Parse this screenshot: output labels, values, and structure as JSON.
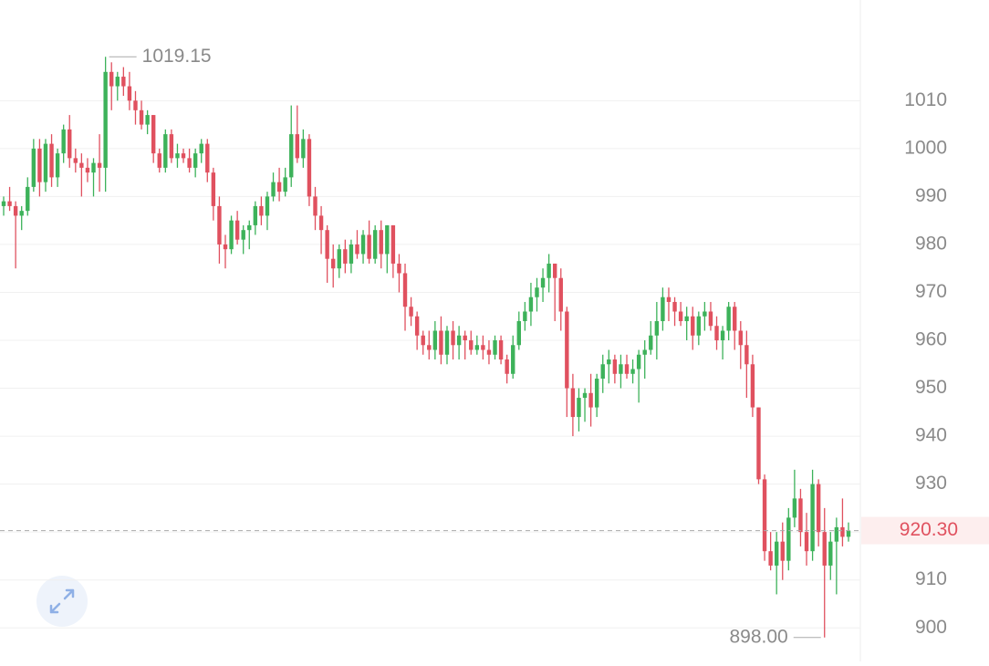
{
  "chart_data": {
    "type": "candlestick",
    "ylim": [
      893,
      1031
    ],
    "yticks": [
      900,
      910,
      920,
      930,
      940,
      950,
      960,
      970,
      980,
      990,
      1000,
      1010
    ],
    "grid": true,
    "up_color": "#3db25a",
    "down_color": "#e0515f",
    "max_label": 1019.15,
    "min_label": {
      "value": 898,
      "label": "898.00"
    },
    "last_price": {
      "value": 920.3,
      "label": "920.30"
    },
    "candles": [
      [
        988,
        990,
        986,
        989
      ],
      [
        989,
        992,
        987,
        988
      ],
      [
        988,
        989,
        975,
        986
      ],
      [
        986,
        988,
        983,
        987
      ],
      [
        987,
        994,
        986,
        992
      ],
      [
        992,
        1002,
        991,
        1000
      ],
      [
        1000,
        1002,
        990,
        993
      ],
      [
        993,
        1002,
        991,
        1001
      ],
      [
        1001,
        1003,
        992,
        994
      ],
      [
        994,
        1000,
        992,
        999
      ],
      [
        999,
        1005,
        997,
        1004
      ],
      [
        1004,
        1007,
        996,
        998
      ],
      [
        998,
        1000,
        995,
        997
      ],
      [
        997,
        999,
        990,
        996
      ],
      [
        996,
        998,
        993,
        995
      ],
      [
        995,
        998,
        990,
        997
      ],
      [
        997,
        1003,
        991,
        996
      ],
      [
        996,
        1019.15,
        991,
        1016
      ],
      [
        1016,
        1018,
        1008,
        1013
      ],
      [
        1013,
        1016,
        1010,
        1015
      ],
      [
        1015,
        1017,
        1011,
        1013
      ],
      [
        1013,
        1016,
        1008,
        1010
      ],
      [
        1010,
        1012,
        1005,
        1008
      ],
      [
        1008,
        1010,
        1004,
        1005
      ],
      [
        1005,
        1008,
        1003,
        1007
      ],
      [
        1007,
        1007,
        997,
        999
      ],
      [
        999,
        1000,
        995,
        996
      ],
      [
        996,
        1004,
        995,
        1003
      ],
      [
        1003,
        1004,
        997,
        998
      ],
      [
        998,
        1001,
        996,
        999
      ],
      [
        999,
        1000,
        997,
        998
      ],
      [
        998,
        1000,
        995,
        996
      ],
      [
        996,
        1000,
        994,
        999
      ],
      [
        999,
        1002,
        997,
        1001
      ],
      [
        1001,
        1002,
        993,
        995
      ],
      [
        995,
        996,
        985,
        988
      ],
      [
        988,
        990,
        976,
        980
      ],
      [
        980,
        982,
        975,
        979
      ],
      [
        979,
        986,
        978,
        985
      ],
      [
        985,
        987,
        980,
        981
      ],
      [
        981,
        984,
        978,
        983
      ],
      [
        983,
        985,
        979,
        984
      ],
      [
        984,
        989,
        982,
        988
      ],
      [
        988,
        990,
        984,
        986
      ],
      [
        986,
        991,
        983,
        990
      ],
      [
        990,
        995,
        989,
        993
      ],
      [
        993,
        996,
        989,
        991
      ],
      [
        991,
        996,
        990,
        994
      ],
      [
        994,
        1009,
        992,
        1003
      ],
      [
        1003,
        1009,
        997,
        998
      ],
      [
        998,
        1004,
        996,
        1002
      ],
      [
        1002,
        1003,
        988,
        990
      ],
      [
        990,
        992,
        983,
        986
      ],
      [
        986,
        988,
        978,
        983
      ],
      [
        983,
        984,
        972,
        977
      ],
      [
        977,
        980,
        971,
        975
      ],
      [
        975,
        980,
        973,
        979
      ],
      [
        979,
        981,
        974,
        976
      ],
      [
        976,
        981,
        974,
        980
      ],
      [
        980,
        983,
        977,
        978
      ],
      [
        978,
        983,
        976,
        982
      ],
      [
        982,
        985,
        976,
        977
      ],
      [
        977,
        984,
        976,
        983
      ],
      [
        983,
        985,
        975,
        978
      ],
      [
        978,
        984,
        974,
        984
      ],
      [
        984,
        984,
        973,
        976
      ],
      [
        976,
        978,
        970,
        974
      ],
      [
        974,
        976,
        962,
        967
      ],
      [
        967,
        969,
        963,
        965
      ],
      [
        965,
        966,
        958,
        961
      ],
      [
        961,
        962,
        957,
        959
      ],
      [
        959,
        962,
        956,
        958
      ],
      [
        958,
        964,
        956,
        962
      ],
      [
        962,
        965,
        955,
        957
      ],
      [
        957,
        963,
        955,
        962
      ],
      [
        962,
        964,
        956,
        959
      ],
      [
        959,
        963,
        956,
        961
      ],
      [
        961,
        962,
        956,
        960
      ],
      [
        960,
        962,
        957,
        958
      ],
      [
        958,
        961,
        957,
        959
      ],
      [
        959,
        961,
        956,
        958
      ],
      [
        958,
        960,
        955,
        957
      ],
      [
        957,
        961,
        956,
        960
      ],
      [
        960,
        961,
        955,
        956
      ],
      [
        956,
        957,
        951,
        953
      ],
      [
        953,
        961,
        952,
        959
      ],
      [
        959,
        966,
        958,
        964
      ],
      [
        964,
        968,
        962,
        966
      ],
      [
        966,
        972,
        963,
        969
      ],
      [
        969,
        973,
        966,
        971
      ],
      [
        971,
        975,
        968,
        973
      ],
      [
        973,
        978,
        970,
        976
      ],
      [
        976,
        976,
        964,
        973
      ],
      [
        973,
        975,
        962,
        966
      ],
      [
        966,
        967,
        944,
        950
      ],
      [
        950,
        953,
        940,
        944
      ],
      [
        944,
        950,
        941,
        948
      ],
      [
        948,
        950,
        943,
        949
      ],
      [
        949,
        953,
        942,
        946
      ],
      [
        946,
        953,
        944,
        952
      ],
      [
        952,
        957,
        949,
        955
      ],
      [
        955,
        958,
        951,
        956
      ],
      [
        956,
        957,
        951,
        953
      ],
      [
        953,
        957,
        950,
        955
      ],
      [
        955,
        957,
        952,
        953
      ],
      [
        953,
        956,
        951,
        954
      ],
      [
        954,
        958,
        947,
        957
      ],
      [
        957,
        960,
        952,
        958
      ],
      [
        958,
        964,
        957,
        961
      ],
      [
        961,
        968,
        956,
        964
      ],
      [
        964,
        971,
        962,
        969
      ],
      [
        969,
        971,
        964,
        968
      ],
      [
        968,
        969,
        963,
        966
      ],
      [
        966,
        968,
        963,
        964
      ],
      [
        964,
        967,
        960,
        965
      ],
      [
        965,
        967,
        958,
        961
      ],
      [
        961,
        966,
        959,
        965
      ],
      [
        965,
        968,
        962,
        966
      ],
      [
        966,
        968,
        962,
        963
      ],
      [
        963,
        965,
        958,
        960
      ],
      [
        960,
        963,
        956,
        962
      ],
      [
        962,
        968,
        960,
        967
      ],
      [
        967,
        968,
        958,
        962
      ],
      [
        962,
        964,
        954,
        959
      ],
      [
        959,
        962,
        948,
        955
      ],
      [
        955,
        957,
        944,
        946
      ],
      [
        946,
        946,
        930,
        931
      ],
      [
        931,
        932,
        914,
        916
      ],
      [
        916,
        920,
        912,
        913
      ],
      [
        913,
        920,
        907,
        918
      ],
      [
        918,
        922,
        910,
        914
      ],
      [
        914,
        925,
        912,
        923
      ],
      [
        923,
        933,
        921,
        927
      ],
      [
        927,
        929,
        917,
        920
      ],
      [
        920,
        924,
        913,
        916
      ],
      [
        916,
        933,
        914,
        930
      ],
      [
        930,
        931,
        917,
        920
      ],
      [
        920,
        925,
        898,
        913
      ],
      [
        913,
        920,
        910,
        918
      ],
      [
        918,
        923,
        907,
        921
      ],
      [
        921,
        927,
        917,
        919
      ],
      [
        919,
        922,
        918,
        920.3
      ]
    ]
  }
}
